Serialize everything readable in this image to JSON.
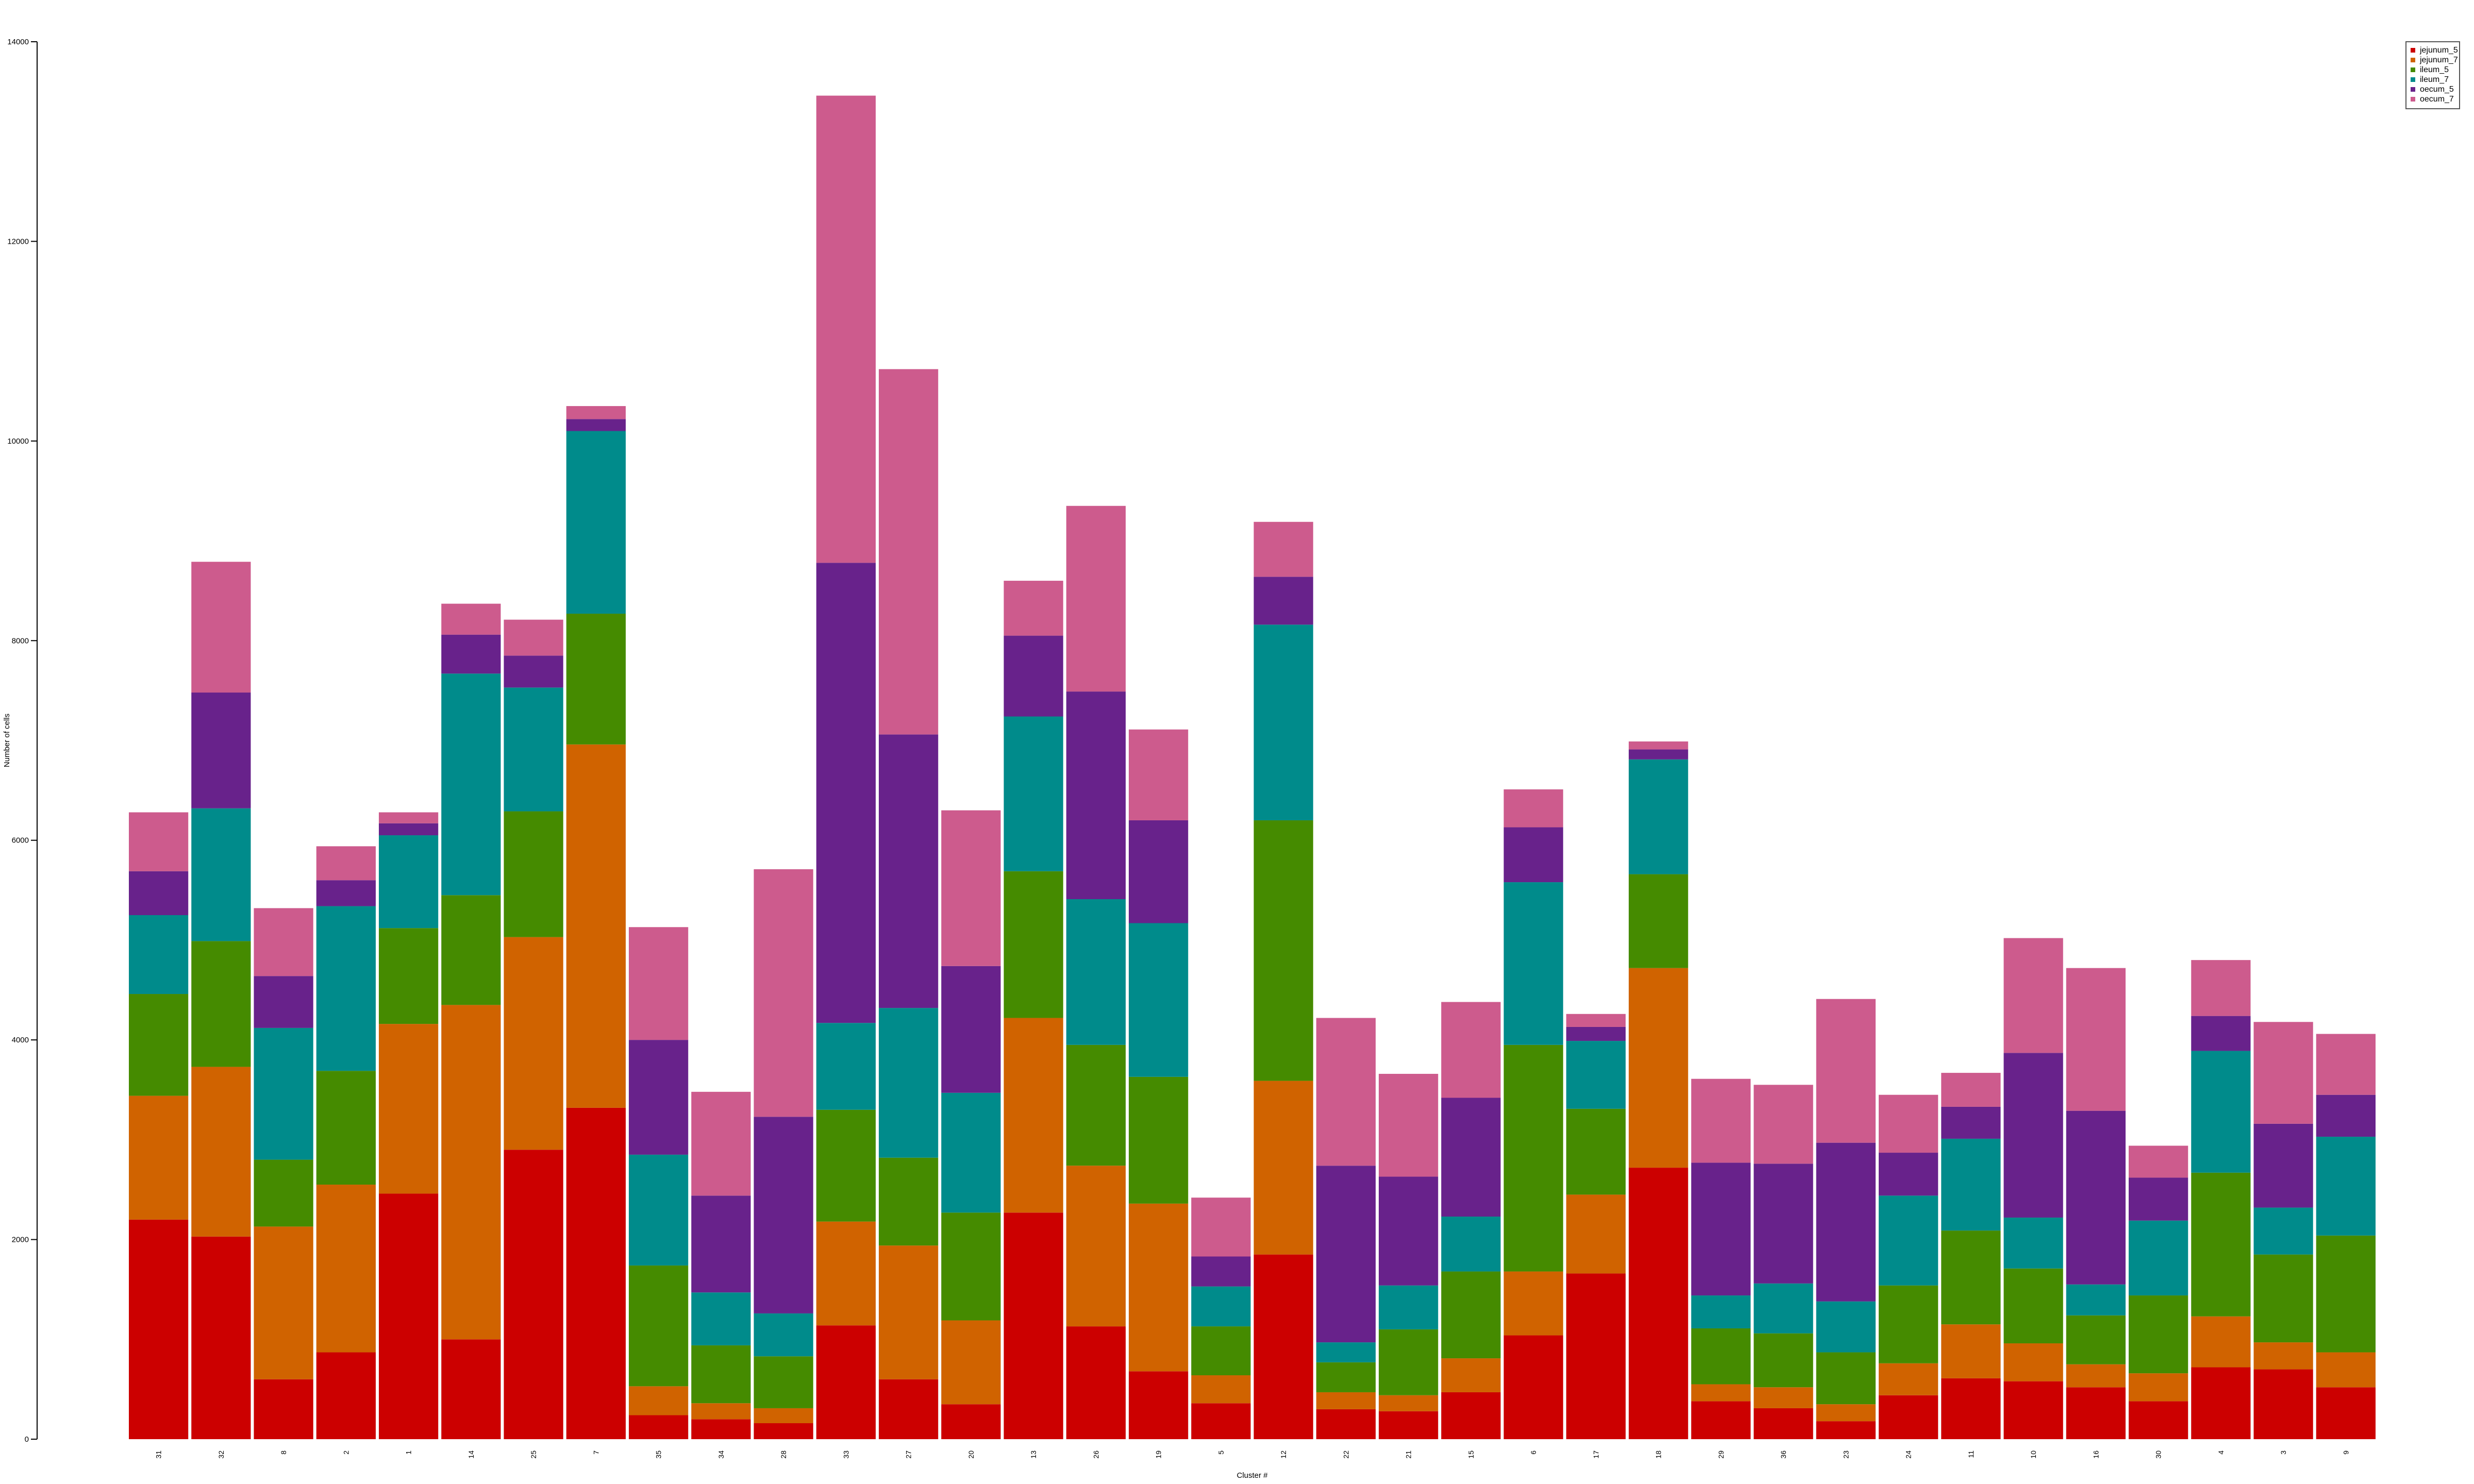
{
  "chart_data": {
    "type": "bar",
    "stacked": true,
    "xlabel": "Cluster #",
    "ylabel": "Number of cells",
    "ylim": [
      0,
      14000
    ],
    "yticks": [
      0,
      2000,
      4000,
      6000,
      8000,
      10000,
      12000,
      14000
    ],
    "legend_position": "top-right",
    "categories": [
      "31",
      "32",
      "8",
      "2",
      "1",
      "14",
      "25",
      "7",
      "35",
      "34",
      "28",
      "33",
      "27",
      "20",
      "13",
      "26",
      "19",
      "5",
      "12",
      "22",
      "21",
      "15",
      "6",
      "17",
      "18",
      "29",
      "36",
      "23",
      "24",
      "11",
      "10",
      "16",
      "30",
      "4",
      "3",
      "9"
    ],
    "series": [
      {
        "name": "jejunum_5",
        "color": "#CC0000",
        "values": [
          2200,
          2030,
          600,
          870,
          2460,
          1000,
          2900,
          3320,
          240,
          200,
          160,
          1140,
          600,
          350,
          2270,
          1130,
          680,
          360,
          1850,
          300,
          280,
          470,
          1040,
          1660,
          2720,
          380,
          310,
          180,
          440,
          610,
          580,
          520,
          380,
          720,
          700,
          520
        ]
      },
      {
        "name": "jejunum_7",
        "color": "#D06300",
        "values": [
          1240,
          1700,
          1530,
          1680,
          1700,
          3350,
          2130,
          3640,
          290,
          160,
          150,
          1040,
          1340,
          840,
          1950,
          1610,
          1680,
          280,
          1740,
          170,
          160,
          340,
          640,
          790,
          2000,
          170,
          210,
          170,
          320,
          540,
          380,
          230,
          280,
          510,
          270,
          350
        ]
      },
      {
        "name": "ileum_5",
        "color": "#458B00",
        "values": [
          1020,
          1260,
          670,
          1140,
          960,
          1100,
          1260,
          1310,
          1210,
          580,
          520,
          1120,
          880,
          1080,
          1470,
          1210,
          1270,
          490,
          2610,
          300,
          660,
          870,
          2270,
          860,
          940,
          560,
          540,
          520,
          780,
          940,
          750,
          490,
          780,
          1440,
          880,
          1170
        ]
      },
      {
        "name": "ileum_7",
        "color": "#008B8B",
        "values": [
          790,
          1330,
          1320,
          1650,
          930,
          2220,
          1240,
          1830,
          1110,
          530,
          430,
          870,
          1500,
          1200,
          1550,
          1460,
          1540,
          400,
          1960,
          200,
          440,
          550,
          1630,
          680,
          1150,
          330,
          500,
          510,
          900,
          920,
          510,
          310,
          750,
          1220,
          470,
          990
        ]
      },
      {
        "name": "oecum_5",
        "color": "#68228B",
        "values": [
          440,
          1160,
          520,
          260,
          120,
          390,
          320,
          120,
          1150,
          970,
          1970,
          4610,
          2740,
          1270,
          810,
          2080,
          1030,
          300,
          480,
          1770,
          1090,
          1190,
          550,
          140,
          100,
          1330,
          1200,
          1590,
          430,
          320,
          1650,
          1740,
          430,
          350,
          840,
          420
        ]
      },
      {
        "name": "oecum_7",
        "color": "#CD5B8D",
        "values": [
          590,
          1310,
          680,
          340,
          110,
          310,
          360,
          130,
          1130,
          1040,
          2480,
          4680,
          3660,
          1560,
          550,
          1860,
          910,
          590,
          550,
          1480,
          1030,
          960,
          380,
          130,
          80,
          840,
          790,
          1440,
          580,
          340,
          1150,
          1430,
          320,
          560,
          1020,
          610
        ]
      }
    ]
  }
}
